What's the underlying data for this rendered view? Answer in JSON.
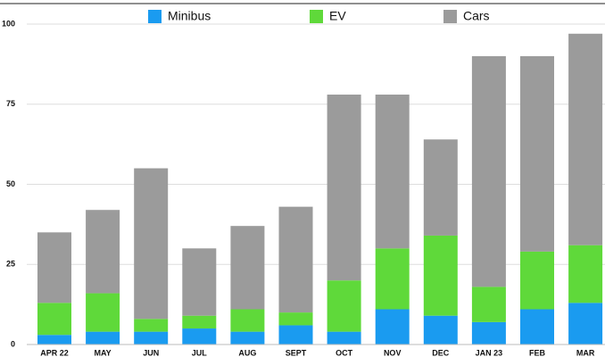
{
  "chart_data": {
    "type": "stacked_bar",
    "categories": [
      "APR 22",
      "MAY",
      "JUN",
      "JUL",
      "AUG",
      "SEPT",
      "OCT",
      "NOV",
      "DEC",
      "JAN 23",
      "FEB",
      "MAR"
    ],
    "series": [
      {
        "name": "Minibus",
        "color": "#1a9bf0",
        "values": [
          3,
          4,
          4,
          5,
          4,
          6,
          4,
          11,
          9,
          7,
          11,
          13
        ]
      },
      {
        "name": "EV",
        "color": "#5fd93a",
        "values": [
          10,
          12,
          4,
          4,
          7,
          4,
          16,
          19,
          25,
          11,
          18,
          18
        ]
      },
      {
        "name": "Cars",
        "color": "#9b9b9b",
        "values": [
          22,
          26,
          47,
          21,
          26,
          33,
          58,
          48,
          30,
          72,
          61,
          66
        ]
      }
    ],
    "ylim": [
      0,
      100
    ],
    "yticks": [
      0,
      25,
      50,
      75,
      100
    ],
    "grid": true,
    "legend": "top"
  }
}
